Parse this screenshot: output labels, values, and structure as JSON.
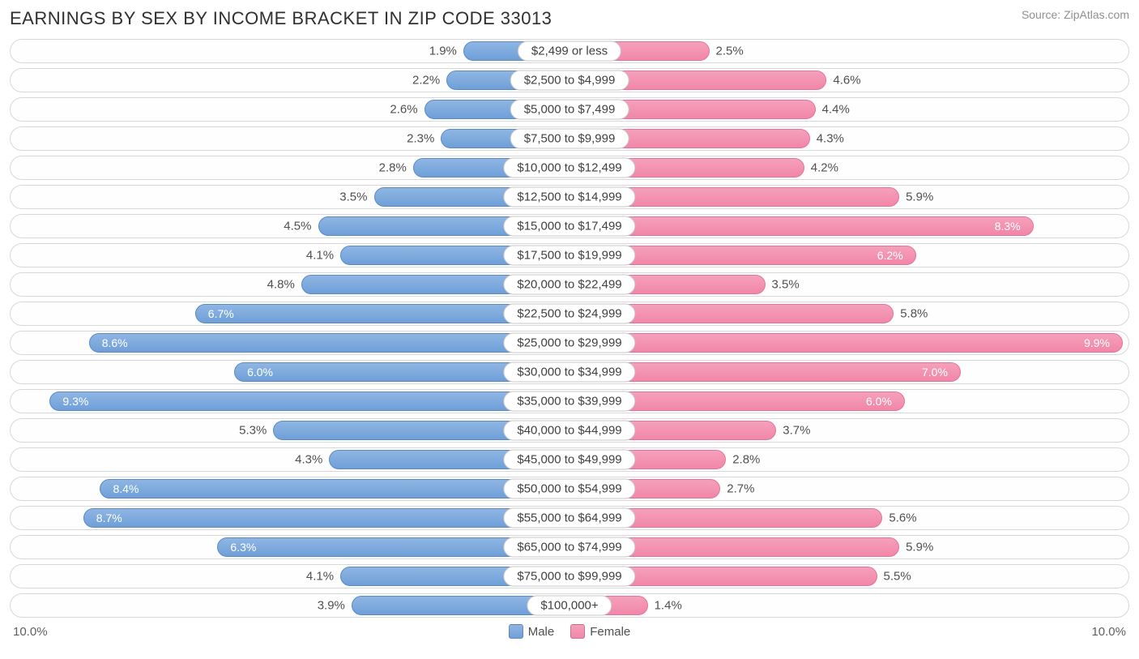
{
  "title": "EARNINGS BY SEX BY INCOME BRACKET IN ZIP CODE 33013",
  "source": "Source: ZipAtlas.com",
  "max_pct": 10.0,
  "axis_left": "10.0%",
  "axis_right": "10.0%",
  "legend": {
    "male": "Male",
    "female": "Female"
  },
  "colors": {
    "male_fill_top": "#8fb6e3",
    "male_fill_bottom": "#6f9fd8",
    "male_border": "#5a8bc9",
    "female_fill_top": "#f5a0bb",
    "female_fill_bottom": "#f186a8",
    "female_border": "#e87399",
    "row_border": "#d8d8d8",
    "text": "#505050",
    "title_text": "#303030",
    "source_text": "#909090",
    "background": "#ffffff"
  },
  "inside_threshold": 6.0,
  "rows": [
    {
      "label": "$2,499 or less",
      "male": 1.9,
      "female": 2.5
    },
    {
      "label": "$2,500 to $4,999",
      "male": 2.2,
      "female": 4.6
    },
    {
      "label": "$5,000 to $7,499",
      "male": 2.6,
      "female": 4.4
    },
    {
      "label": "$7,500 to $9,999",
      "male": 2.3,
      "female": 4.3
    },
    {
      "label": "$10,000 to $12,499",
      "male": 2.8,
      "female": 4.2
    },
    {
      "label": "$12,500 to $14,999",
      "male": 3.5,
      "female": 5.9
    },
    {
      "label": "$15,000 to $17,499",
      "male": 4.5,
      "female": 8.3
    },
    {
      "label": "$17,500 to $19,999",
      "male": 4.1,
      "female": 6.2
    },
    {
      "label": "$20,000 to $22,499",
      "male": 4.8,
      "female": 3.5
    },
    {
      "label": "$22,500 to $24,999",
      "male": 6.7,
      "female": 5.8
    },
    {
      "label": "$25,000 to $29,999",
      "male": 8.6,
      "female": 9.9
    },
    {
      "label": "$30,000 to $34,999",
      "male": 6.0,
      "female": 7.0
    },
    {
      "label": "$35,000 to $39,999",
      "male": 9.3,
      "female": 6.0
    },
    {
      "label": "$40,000 to $44,999",
      "male": 5.3,
      "female": 3.7
    },
    {
      "label": "$45,000 to $49,999",
      "male": 4.3,
      "female": 2.8
    },
    {
      "label": "$50,000 to $54,999",
      "male": 8.4,
      "female": 2.7
    },
    {
      "label": "$55,000 to $64,999",
      "male": 8.7,
      "female": 5.6
    },
    {
      "label": "$65,000 to $74,999",
      "male": 6.3,
      "female": 5.9
    },
    {
      "label": "$75,000 to $99,999",
      "male": 4.1,
      "female": 5.5
    },
    {
      "label": "$100,000+",
      "male": 3.9,
      "female": 1.4
    }
  ]
}
